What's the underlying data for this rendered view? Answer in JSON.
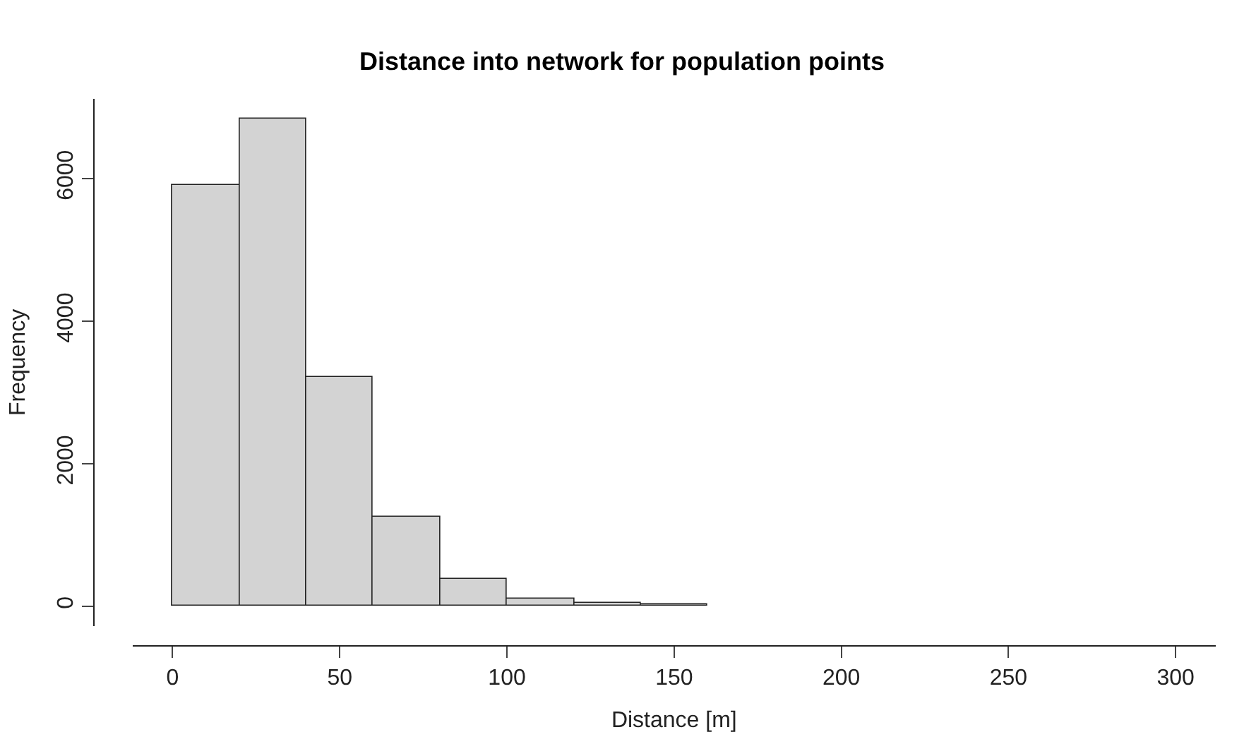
{
  "chart_data": {
    "type": "histogram",
    "title": "Distance into network for population points",
    "xlabel": "Distance [m]",
    "ylabel": "Frequency",
    "bins": [
      0,
      20,
      40,
      60,
      80,
      100,
      120,
      140,
      160,
      180,
      200,
      220,
      240,
      260,
      280,
      300
    ],
    "values": [
      5910,
      6840,
      3210,
      1260,
      390,
      100,
      40,
      20,
      0,
      0,
      0,
      0,
      0,
      0,
      0
    ],
    "color": "#d3d3d3",
    "xlim": [
      -12,
      312
    ],
    "xticks": [
      0,
      50,
      100,
      150,
      200,
      250,
      300
    ],
    "ylim": [
      -280,
      7120
    ],
    "yticks": [
      0,
      2000,
      4000,
      6000
    ]
  }
}
